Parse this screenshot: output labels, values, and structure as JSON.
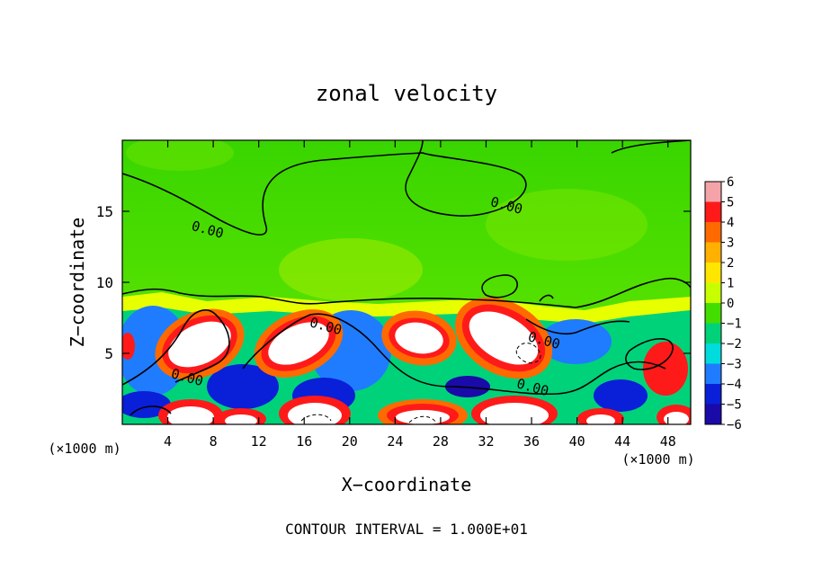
{
  "chart_data": {
    "type": "heatmap",
    "title": "zonal velocity",
    "xlabel": "X−coordinate",
    "ylabel": "Z−coordinate",
    "x_unit": "(×1000 m)",
    "footer": "CONTOUR INTERVAL = 1.000E+01",
    "xlim": [
      0,
      50
    ],
    "ylim": [
      0,
      20
    ],
    "x_ticks": [
      4,
      8,
      12,
      16,
      20,
      24,
      28,
      32,
      36,
      40,
      44,
      48
    ],
    "y_ticks": [
      5,
      10,
      15
    ],
    "colorbar": {
      "levels": [
        6,
        5,
        4,
        3,
        2,
        1,
        0,
        -1,
        -2,
        -3,
        -4,
        -5,
        -6
      ],
      "colors": [
        "#f4a3a8",
        "#ff1a1a",
        "#ff6a00",
        "#ffb000",
        "#ffe600",
        "#c8ff00",
        "#44dd00",
        "#00d27a",
        "#00dcdc",
        "#1f7cff",
        "#0a1fd8",
        "#1a0aa8",
        "#7a00b8"
      ]
    },
    "contour_labels": [
      {
        "text": "0.00",
        "x": 7.4,
        "y": 13.4
      },
      {
        "text": "0.00",
        "x": 33.7,
        "y": 15.1
      },
      {
        "text": "0.00",
        "x": 17.8,
        "y": 6.6
      },
      {
        "text": "0.00",
        "x": 37.0,
        "y": 5.6
      },
      {
        "text": "0.00",
        "x": 5.6,
        "y": 3.0
      },
      {
        "text": "0.00",
        "x": 36.0,
        "y": 2.3
      }
    ]
  }
}
